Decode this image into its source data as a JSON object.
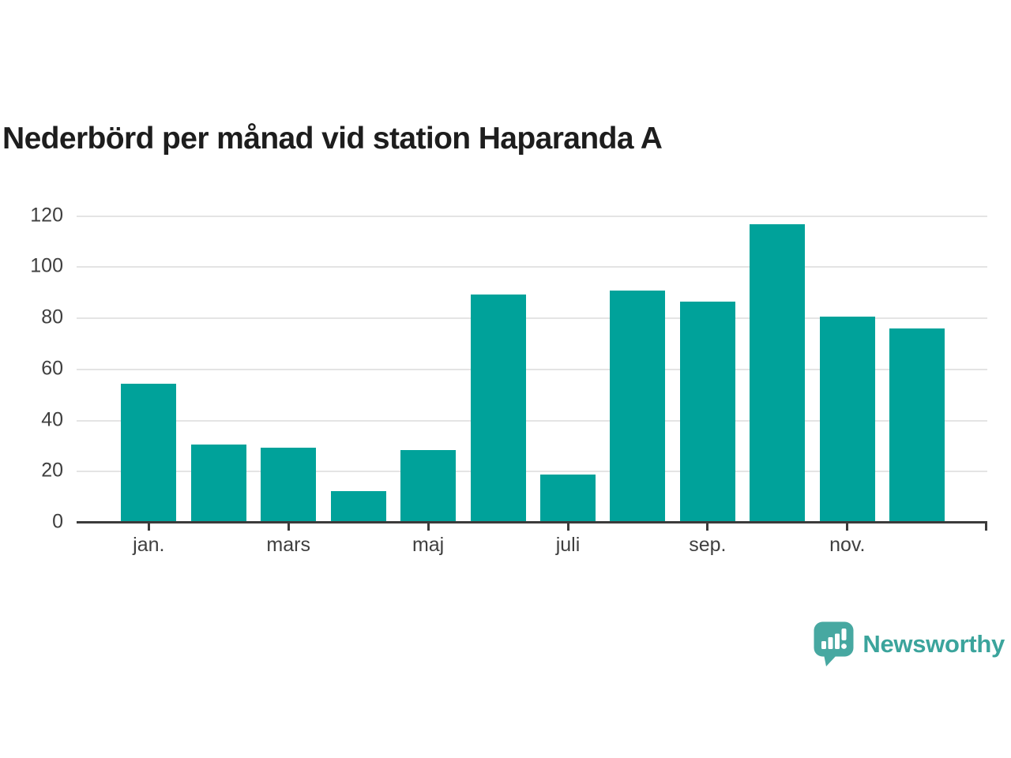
{
  "page": {
    "title": "Nederbörd per månad vid station Haparanda A",
    "background": "#ffffff"
  },
  "chart_data": {
    "type": "bar",
    "title": "Nederbörd per månad vid station Haparanda A",
    "values": [
      54.5,
      30.7,
      29.5,
      12.3,
      28.5,
      89.2,
      18.8,
      90.7,
      86.5,
      116.8,
      80.7,
      76.1
    ],
    "x_ticks": [
      {
        "index": 0,
        "label": "jan."
      },
      {
        "index": 2,
        "label": "mars"
      },
      {
        "index": 4,
        "label": "maj"
      },
      {
        "index": 6,
        "label": "juli"
      },
      {
        "index": 8,
        "label": "sep."
      },
      {
        "index": 10,
        "label": "nov."
      }
    ],
    "yticks": [
      0,
      20,
      40,
      60,
      80,
      100,
      120
    ],
    "ylim": [
      0,
      120
    ],
    "grid": "horizontal",
    "legend": "none",
    "bar_color": "#00A29A",
    "axis_color": "#3b3b3b",
    "gridline_color": "#e4e4e4",
    "tick_label_color": "#3f3f3f"
  },
  "logo": {
    "text": "Newsworthy",
    "icon": "newsworthy-speech-bubble-chart-icon",
    "bubble_color": "#47A8A1",
    "text_color": "#3BA49C"
  }
}
